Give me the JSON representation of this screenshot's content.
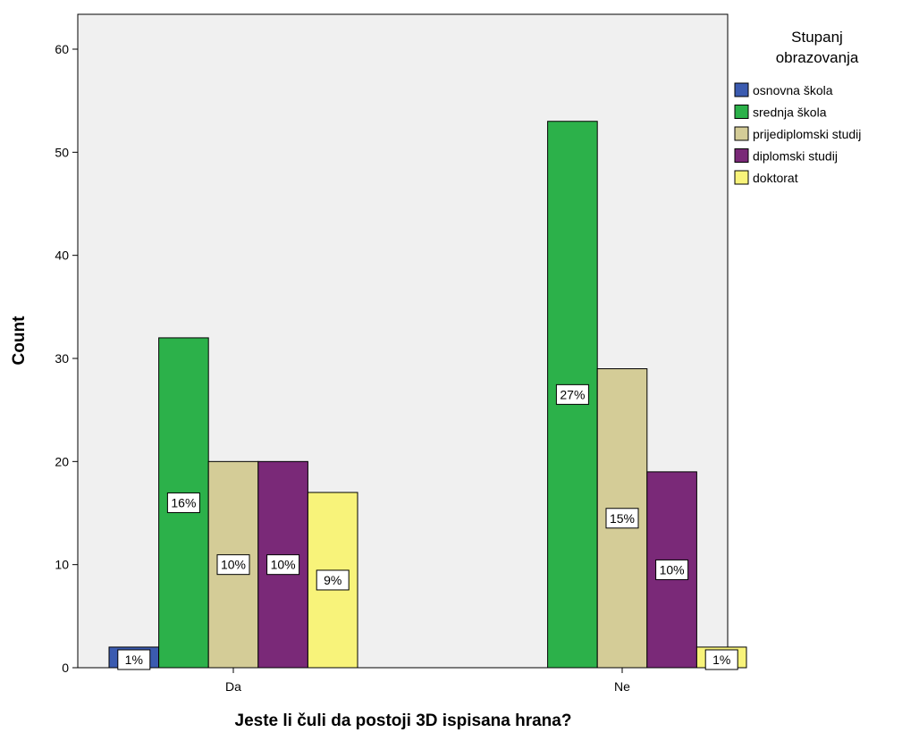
{
  "chart_data": {
    "type": "bar",
    "categories": [
      "Da",
      "Ne"
    ],
    "xlabel": "Jeste li čuli da postoji 3D ispisana hrana?",
    "ylabel": "Count",
    "ylim": [
      0,
      62
    ],
    "yticks": [
      0,
      10,
      20,
      30,
      40,
      50,
      60
    ],
    "grid": false,
    "legend_title": [
      "Stupanj",
      "obrazovanja"
    ],
    "legend_position": "right",
    "series": [
      {
        "name": "osnovna škola",
        "color": "#3b5bb0",
        "values": [
          2,
          0
        ],
        "labels": [
          "1%",
          ""
        ]
      },
      {
        "name": "srednja škola",
        "color": "#2cb14a",
        "values": [
          32,
          53
        ],
        "labels": [
          "16%",
          "27%"
        ]
      },
      {
        "name": "prijediplomski studij",
        "color": "#d4cc97",
        "values": [
          20,
          29
        ],
        "labels": [
          "10%",
          "15%"
        ]
      },
      {
        "name": "diplomski studij",
        "color": "#7a2978",
        "values": [
          20,
          19
        ],
        "labels": [
          "10%",
          "10%"
        ]
      },
      {
        "name": "doktorat",
        "color": "#f8f37a",
        "values": [
          17,
          2
        ],
        "labels": [
          "9%",
          "1%"
        ]
      }
    ],
    "plot_background": "#f0f0f0"
  }
}
